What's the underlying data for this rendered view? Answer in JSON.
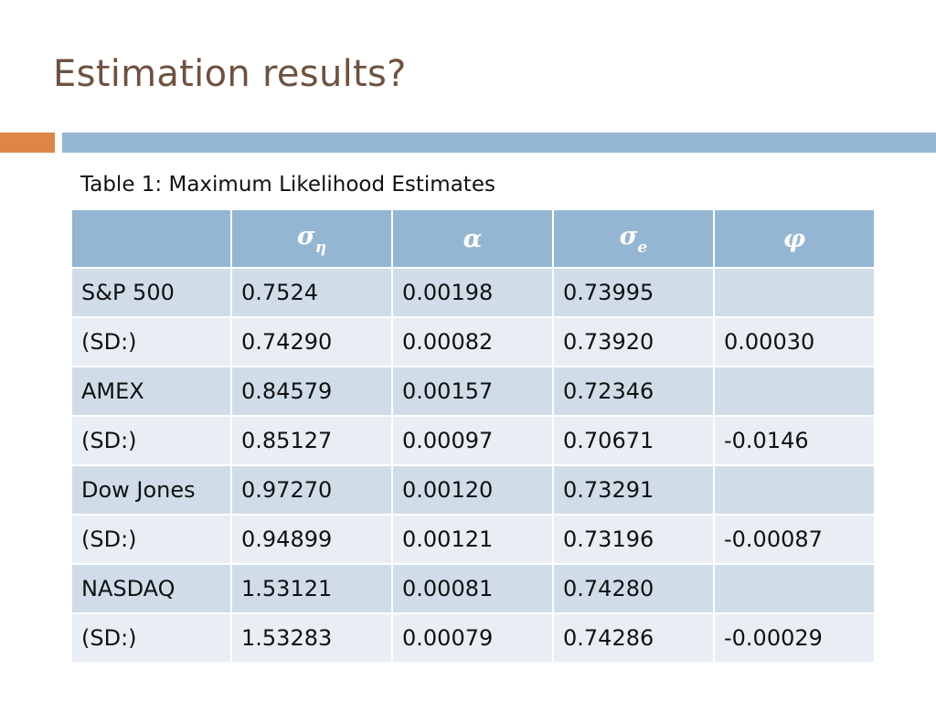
{
  "slide": {
    "title": "Estimation results?",
    "caption": "Table 1: Maximum Likelihood Estimates"
  },
  "table": {
    "headers": [
      {
        "text": "",
        "sub": ""
      },
      {
        "text": "σ",
        "sub": "η"
      },
      {
        "text": "α",
        "sub": ""
      },
      {
        "text": "σ",
        "sub": "e"
      },
      {
        "text": "φ",
        "sub": ""
      }
    ],
    "rows": [
      [
        "S&P 500",
        "0.7524",
        "0.00198",
        "0.73995",
        ""
      ],
      [
        "(SD:)",
        "0.74290",
        "0.00082",
        "0.73920",
        "0.00030"
      ],
      [
        "AMEX",
        "0.84579",
        "0.00157",
        "0.72346",
        ""
      ],
      [
        "(SD:)",
        "0.85127",
        "0.00097",
        "0.70671",
        "-0.0146"
      ],
      [
        "Dow Jones",
        "0.97270",
        "0.00120",
        "0.73291",
        ""
      ],
      [
        "(SD:)",
        "0.94899",
        "0.00121",
        "0.73196",
        "-0.00087"
      ],
      [
        "NASDAQ",
        "1.53121",
        "0.00081",
        "0.74280",
        ""
      ],
      [
        "(SD:)",
        "1.53283",
        "0.00079",
        "0.74286",
        "-0.00029"
      ]
    ]
  },
  "colors": {
    "title": "#6e5140",
    "accent_orange": "#dd8646",
    "accent_blue": "#94b6d2",
    "header_bg": "#94b6d2",
    "row_dark": "#d0dde9",
    "row_light": "#e9eef5"
  }
}
